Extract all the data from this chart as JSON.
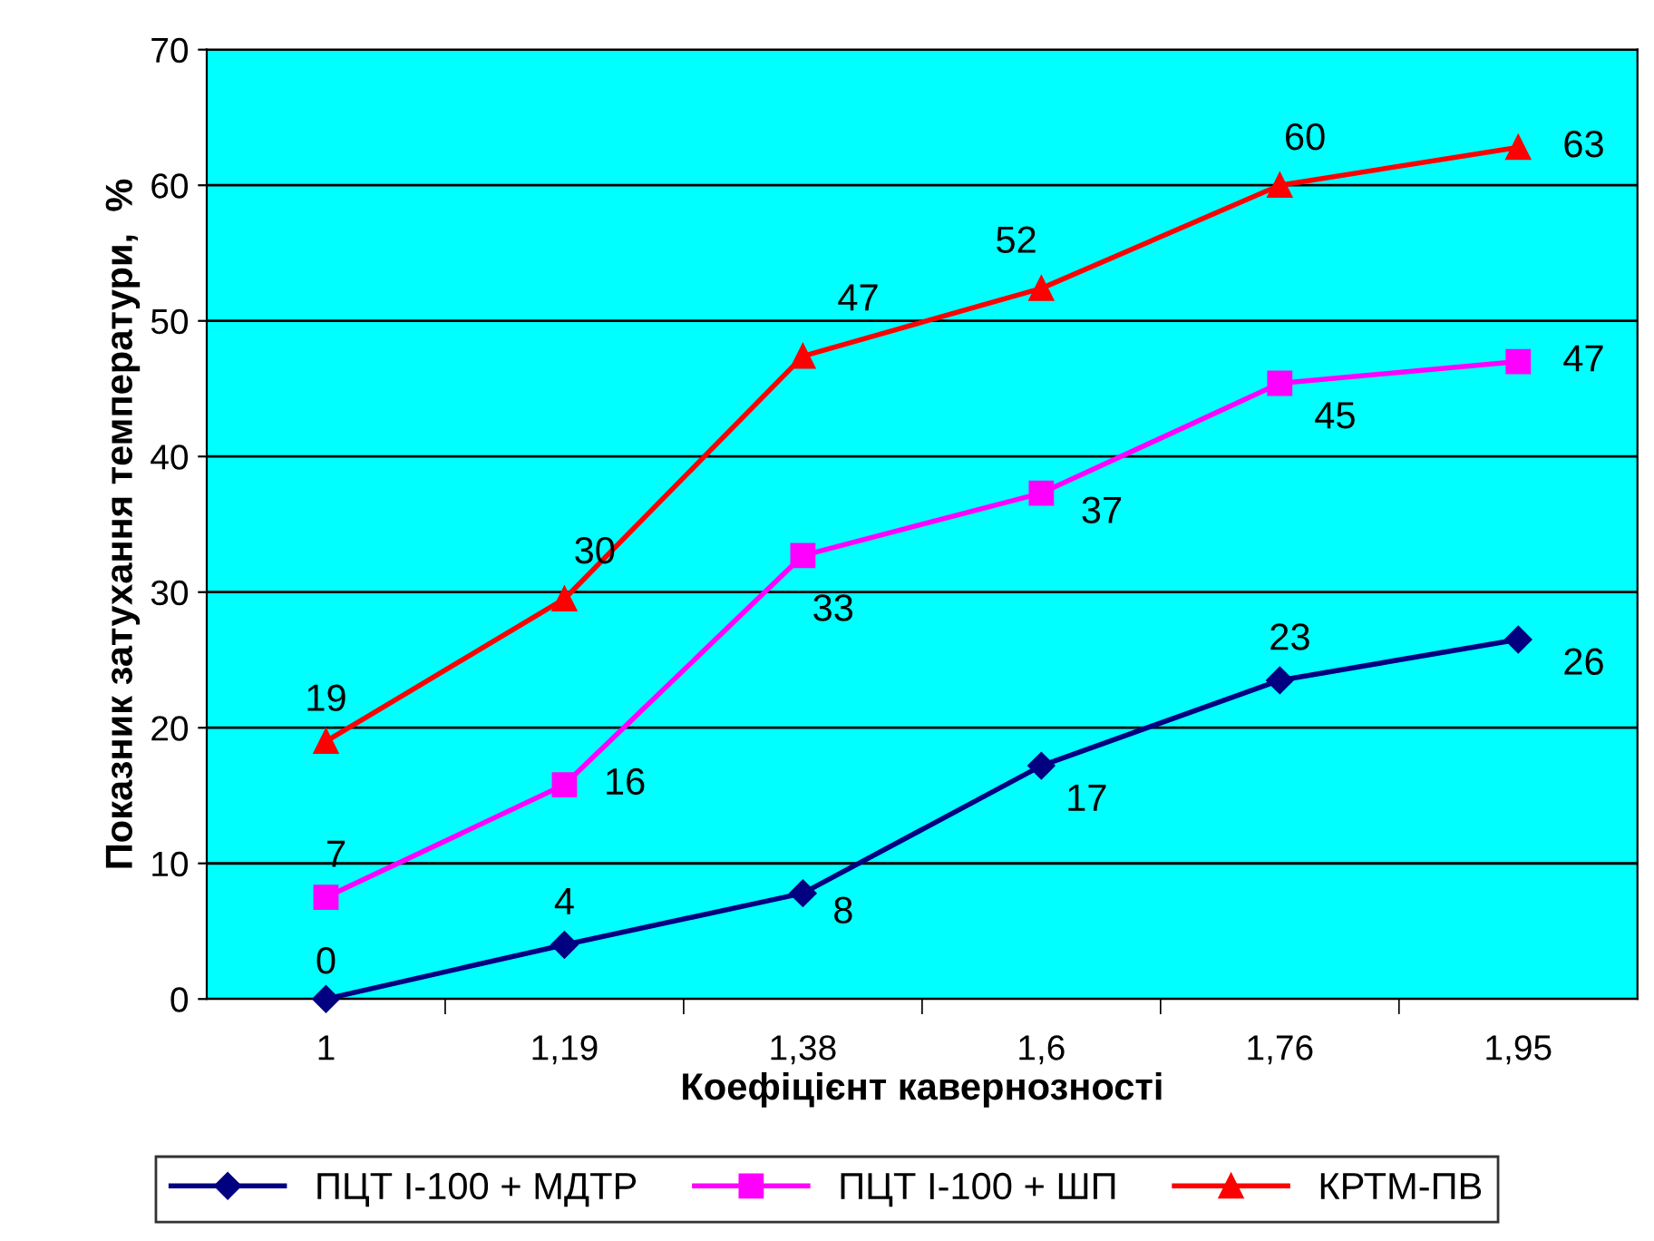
{
  "chart_data": {
    "type": "line",
    "xlabel": "Коефіцієнт кавернозності",
    "ylabel": "Показник затухання температури,  %",
    "categories": [
      "1",
      "1,19",
      "1,38",
      "1,6",
      "1,76",
      "1,95"
    ],
    "series": [
      {
        "name": "ПЦТ І-100 + МДТР",
        "color": "#000080",
        "marker": "diamond",
        "values": [
          0,
          4,
          7.8,
          17.2,
          23.5,
          26.5
        ],
        "value_labels": [
          "0",
          "4",
          "8",
          "17",
          "23",
          "26"
        ]
      },
      {
        "name": "ПЦТ І-100 + ШП",
        "color": "#ff00ff",
        "marker": "square",
        "values": [
          7.5,
          15.8,
          32.7,
          37.3,
          45.4,
          47
        ],
        "value_labels": [
          "7",
          "16",
          "33",
          "37",
          "45",
          "47"
        ]
      },
      {
        "name": "КРТМ-ПВ",
        "color": "#ff0000",
        "marker": "triangle",
        "values": [
          19,
          29.5,
          47.4,
          52.4,
          60,
          62.8
        ],
        "value_labels": [
          "19",
          "30",
          "47",
          "52",
          "60",
          "63"
        ]
      }
    ],
    "ylim": [
      0,
      70
    ],
    "yticks": [
      0,
      10,
      20,
      30,
      40,
      50,
      60,
      70
    ],
    "grid": "y",
    "legend": "bottom"
  }
}
